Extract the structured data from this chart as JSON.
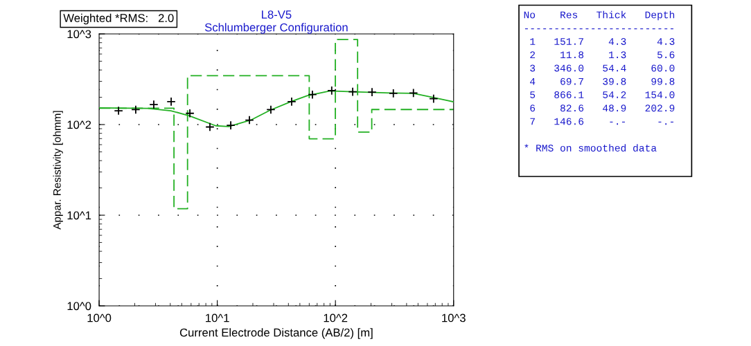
{
  "chart_data": {
    "type": "line",
    "title": "L8-V5",
    "subtitle": "Schlumberger Configuration",
    "xlabel": "Current Electrode Distance (AB/2) [m]",
    "ylabel": "Appar. Resistivity [ohmm]",
    "log": "xy",
    "grid": true,
    "legend": false,
    "xlim": [
      1,
      1000
    ],
    "ylim": [
      1,
      1000
    ],
    "xticks": [
      {
        "value": 1,
        "label": "10^0"
      },
      {
        "value": 10,
        "label": "10^1"
      },
      {
        "value": 100,
        "label": "10^2"
      },
      {
        "value": 1000,
        "label": "10^3"
      }
    ],
    "yticks": [
      {
        "value": 1,
        "label": "10^0"
      },
      {
        "value": 10,
        "label": "10^1"
      },
      {
        "value": 100,
        "label": "10^2"
      },
      {
        "value": 1000,
        "label": "10^3"
      }
    ],
    "series": [
      {
        "type": "scatter",
        "color": "#000000",
        "marker": "cross",
        "x": [
          1.46,
          2.04,
          2.9,
          4.07,
          5.86,
          8.66,
          13.0,
          18.7,
          28.4,
          42.6,
          63.8,
          93,
          140,
          204,
          309,
          457,
          677
        ],
        "values": [
          142,
          146,
          166,
          179,
          133,
          94,
          98,
          112,
          146,
          179,
          214,
          237,
          230,
          228,
          221,
          223,
          193
        ]
      },
      {
        "color": "#22b022",
        "line_style": "solid",
        "x": [
          1.0,
          2.58,
          4.05,
          5.8,
          9.7,
          12.5,
          19.5,
          28,
          42,
          57.5,
          90,
          141,
          290,
          455,
          652,
          894,
          1000
        ],
        "values": [
          153,
          151,
          142,
          125,
          97,
          95,
          113,
          144,
          179,
          208,
          235,
          230,
          223,
          221,
          201,
          184,
          178
        ]
      },
      {
        "type": "step",
        "color": "#22b022",
        "line_style": "dashed",
        "x": [
          1,
          4.3,
          5.6,
          60.0,
          99.8,
          154.0,
          202.9,
          1000
        ],
        "values": [
          151.7,
          11.8,
          346.0,
          69.7,
          866.1,
          82.6,
          146.6,
          146.6
        ]
      }
    ],
    "annotations": [
      "Weighted *RMS:   2.0",
      "No    Res   Thick   Depth",
      "-------------------------",
      " 1   151.7    4.3     4.3",
      " 2    11.8    1.3     5.6",
      " 3   346.0   54.4    60.0",
      " 4    69.7   39.8    99.8",
      " 5   866.1   54.2   154.0",
      " 6    82.6   48.9   202.9",
      " 7   146.6    -.-     -.-",
      "* RMS on smoothed data"
    ]
  }
}
